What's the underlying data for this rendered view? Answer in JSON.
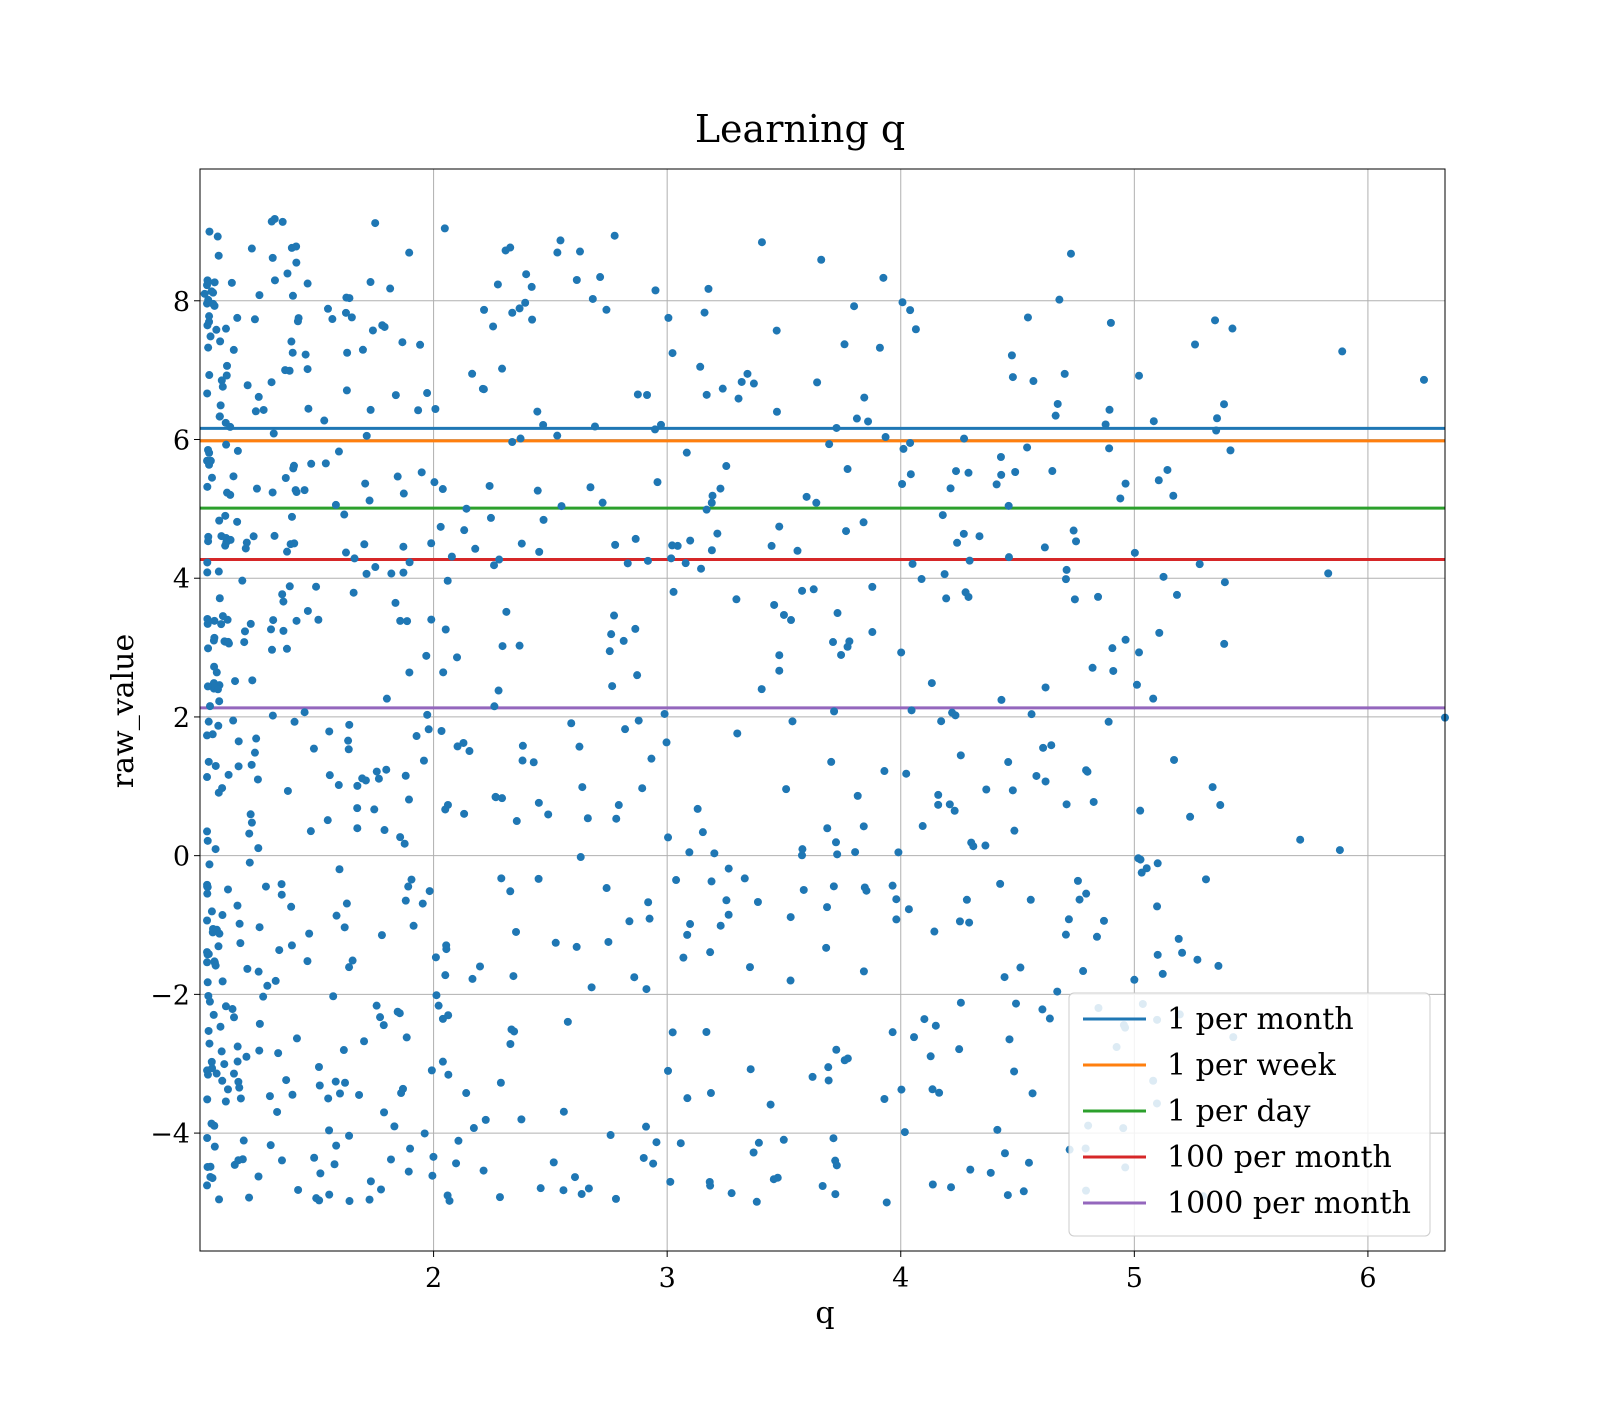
{
  "chart_data": {
    "type": "scatter",
    "title": "Learning q",
    "xlabel": "q",
    "ylabel": "raw_value",
    "xlim": [
      1.0,
      6.33
    ],
    "ylim": [
      -5.7,
      9.9
    ],
    "x_ticks": [
      2,
      3,
      4,
      5,
      6
    ],
    "y_ticks": [
      -4,
      -2,
      0,
      2,
      4,
      6,
      8
    ],
    "x_tick_labels": [
      "2",
      "3",
      "4",
      "5",
      "6"
    ],
    "y_tick_labels": [
      "−4",
      "−2",
      "0",
      "2",
      "4",
      "6",
      "8"
    ],
    "grid": true,
    "legend_position": "lower-right",
    "scatter_color": "#1f77b4",
    "point_count": 900,
    "points_sample": [
      [
        1.02,
        8.1
      ],
      [
        1.08,
        8.65
      ],
      [
        1.32,
        9.18
      ],
      [
        1.75,
        9.12
      ],
      [
        1.73,
        8.27
      ],
      [
        2.42,
        8.2
      ],
      [
        2.95,
        8.15
      ],
      [
        2.74,
        7.87
      ],
      [
        3.16,
        7.83
      ],
      [
        5.42,
        7.6
      ],
      [
        5.89,
        7.27
      ],
      [
        6.24,
        6.86
      ],
      [
        4.48,
        6.9
      ],
      [
        5.02,
        6.92
      ],
      [
        3.47,
        6.4
      ],
      [
        3.86,
        6.26
      ],
      [
        4.04,
        5.95
      ],
      [
        4.29,
        5.52
      ],
      [
        4.43,
        5.49
      ],
      [
        4.94,
        5.15
      ],
      [
        4.18,
        4.91
      ],
      [
        4.27,
        4.64
      ],
      [
        4.71,
        4.12
      ],
      [
        5.83,
        4.07
      ],
      [
        4.29,
        3.73
      ],
      [
        5.02,
        2.93
      ],
      [
        3.71,
        3.08
      ],
      [
        3.78,
        3.09
      ],
      [
        3.5,
        3.47
      ],
      [
        3.48,
        2.89
      ],
      [
        4.56,
        2.04
      ],
      [
        4.89,
        1.93
      ],
      [
        6.33,
        1.99
      ],
      [
        5.17,
        1.38
      ],
      [
        4.46,
        1.35
      ],
      [
        4.62,
        1.07
      ],
      [
        4.71,
        0.74
      ],
      [
        4.21,
        0.74
      ],
      [
        3.93,
        1.22
      ],
      [
        5.71,
        0.23
      ],
      [
        5.88,
        0.08
      ],
      [
        5.1,
        -0.11
      ],
      [
        4.87,
        -0.94
      ],
      [
        4.84,
        -1.17
      ],
      [
        5.19,
        -1.2
      ],
      [
        5.36,
        -1.59
      ],
      [
        5.1,
        -1.43
      ],
      [
        5.0,
        -1.79
      ],
      [
        4.67,
        -1.96
      ],
      [
        4.25,
        -2.79
      ],
      [
        3.76,
        -2.95
      ],
      [
        3.37,
        -4.28
      ],
      [
        3.72,
        -4.88
      ],
      [
        3.94,
        -5.0
      ],
      [
        2.94,
        -4.44
      ],
      [
        2.06,
        -4.9
      ],
      [
        1.64,
        -4.98
      ],
      [
        1.51,
        -4.97
      ],
      [
        1.21,
        -4.93
      ],
      [
        1.42,
        -4.82
      ]
    ],
    "hlines": [
      {
        "name": "1 per month",
        "y": 6.16,
        "color": "#1f77b4"
      },
      {
        "name": "1 per week",
        "y": 5.98,
        "color": "#ff7f0e"
      },
      {
        "name": "1 per day",
        "y": 5.01,
        "color": "#2ca02c"
      },
      {
        "name": "100 per month",
        "y": 4.27,
        "color": "#d62728"
      },
      {
        "name": "1000 per month",
        "y": 2.13,
        "color": "#9467bd"
      }
    ]
  }
}
